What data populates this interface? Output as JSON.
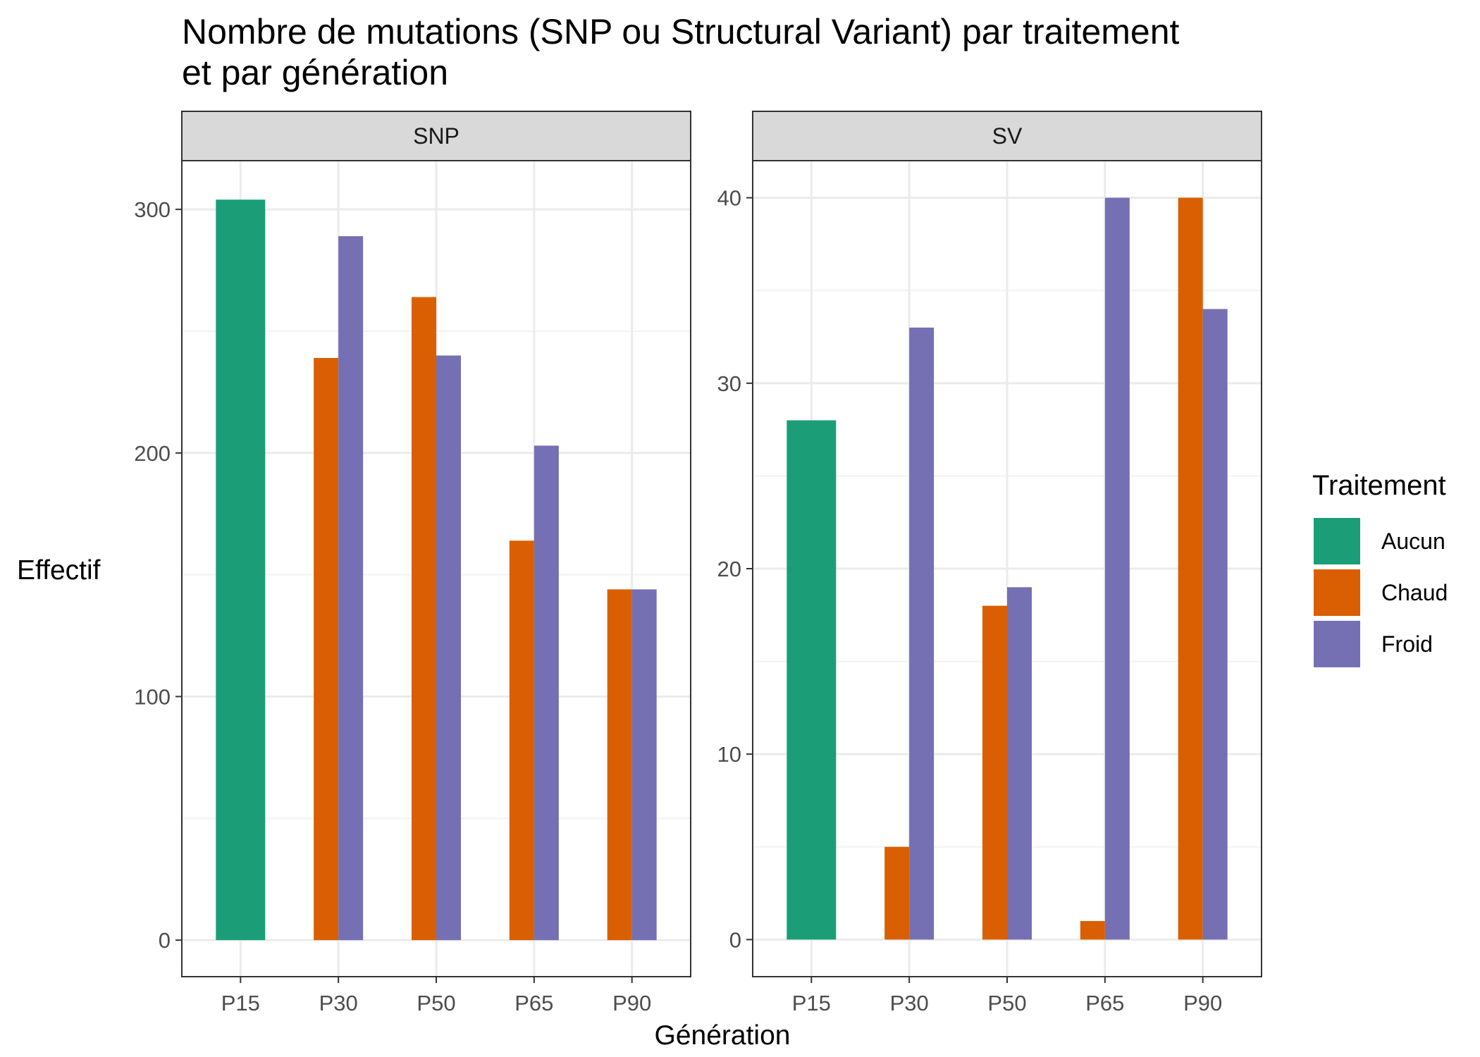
{
  "chart_data": {
    "type": "bar",
    "title_lines": [
      "Nombre de mutations (SNP ou Structural Variant) par traitement",
      "et par génération"
    ],
    "xlabel": "Génération",
    "ylabel": "Effectif",
    "categories": [
      "P15",
      "P30",
      "P50",
      "P65",
      "P90"
    ],
    "legend": {
      "title": "Traitement",
      "position": "right",
      "entries": [
        {
          "name": "Aucun",
          "color": "#1B9E77"
        },
        {
          "name": "Chaud",
          "color": "#D95F02"
        },
        {
          "name": "Froid",
          "color": "#7570B3"
        }
      ]
    },
    "grid": true,
    "panels": [
      {
        "label": "SNP",
        "ylim": [
          -15,
          320
        ],
        "yticks": [
          0,
          100,
          200,
          300
        ],
        "yminor": [
          50,
          150,
          250
        ],
        "bars": [
          {
            "category": "P15",
            "series": "Aucun",
            "value": 304
          },
          {
            "category": "P30",
            "series": "Chaud",
            "value": 239
          },
          {
            "category": "P30",
            "series": "Froid",
            "value": 289
          },
          {
            "category": "P50",
            "series": "Chaud",
            "value": 264
          },
          {
            "category": "P50",
            "series": "Froid",
            "value": 240
          },
          {
            "category": "P65",
            "series": "Chaud",
            "value": 164
          },
          {
            "category": "P65",
            "series": "Froid",
            "value": 203
          },
          {
            "category": "P90",
            "series": "Chaud",
            "value": 144
          },
          {
            "category": "P90",
            "series": "Froid",
            "value": 144
          }
        ]
      },
      {
        "label": "SV",
        "ylim": [
          -2,
          42
        ],
        "yticks": [
          0,
          10,
          20,
          30,
          40
        ],
        "yminor": [
          5,
          15,
          25,
          35
        ],
        "bars": [
          {
            "category": "P15",
            "series": "Aucun",
            "value": 28
          },
          {
            "category": "P30",
            "series": "Chaud",
            "value": 5
          },
          {
            "category": "P30",
            "series": "Froid",
            "value": 33
          },
          {
            "category": "P50",
            "series": "Chaud",
            "value": 18
          },
          {
            "category": "P50",
            "series": "Froid",
            "value": 19
          },
          {
            "category": "P65",
            "series": "Chaud",
            "value": 1
          },
          {
            "category": "P65",
            "series": "Froid",
            "value": 40
          },
          {
            "category": "P90",
            "series": "Chaud",
            "value": 40
          },
          {
            "category": "P90",
            "series": "Froid",
            "value": 34
          }
        ]
      }
    ]
  }
}
